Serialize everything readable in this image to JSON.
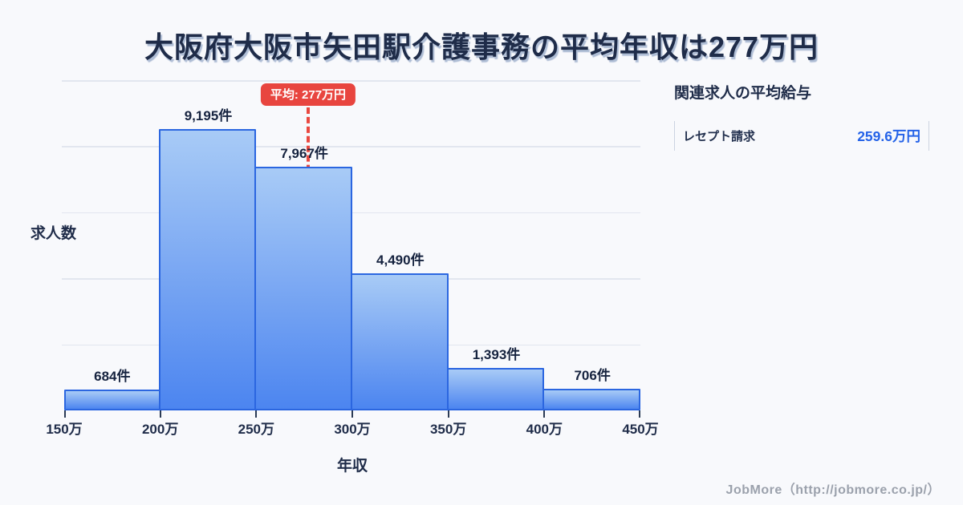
{
  "page": {
    "background": "#f8f9fc"
  },
  "chart_data": {
    "type": "bar",
    "title": "大阪府大阪市矢田駅介護事務の平均年収は277万円",
    "xlabel": "年収",
    "ylabel": "求人数",
    "bin_edge_labels": [
      "150万",
      "200万",
      "250万",
      "300万",
      "350万",
      "400万",
      "450万"
    ],
    "bin_edge_values_man": [
      150,
      200,
      250,
      300,
      350,
      400,
      450
    ],
    "categories": [
      "150万-200万",
      "200万-250万",
      "250万-300万",
      "300万-350万",
      "350万-400万",
      "400万-450万"
    ],
    "values": [
      684,
      9195,
      7967,
      4490,
      1393,
      706
    ],
    "value_labels": [
      "684件",
      "9,195件",
      "7,967件",
      "4,490件",
      "1,393件",
      "706件"
    ],
    "ylim": [
      0,
      10800
    ],
    "grid": true,
    "gridline_count": 5,
    "legend": "none",
    "average": {
      "value_man": 277,
      "label": "平均: 277万円"
    },
    "colors": {
      "bar_fill_top": "#a8cbf6",
      "bar_fill_bottom": "#4c85f0",
      "bar_border": "#2b66e0",
      "average_red": "#e8453f",
      "gridline": "#e2e6ef",
      "text_dark": "#1f2c49",
      "value_blue": "#2563e8"
    }
  },
  "side_panel": {
    "heading": "関連求人の平均給与",
    "rows": [
      {
        "label": "レセプト請求",
        "value": "259.6万円"
      }
    ]
  },
  "footer": {
    "credit": "JobMore（http://jobmore.co.jp/）"
  }
}
